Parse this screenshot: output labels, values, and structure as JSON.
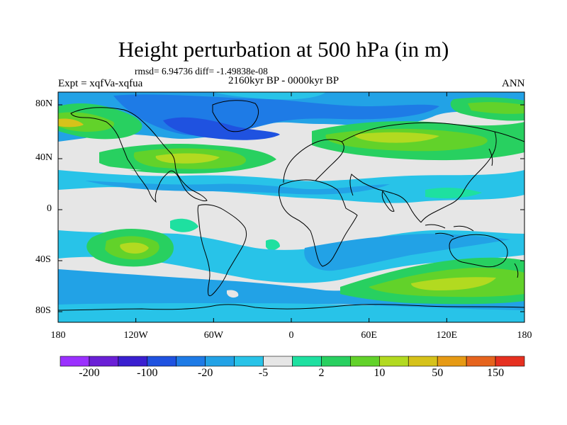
{
  "figure": {
    "title": "Height perturbation at 500 hPa (in m)",
    "stats": "rmsd= 6.94736 diff= -1.49838e-08",
    "experiment": "Expt = xqfVa-xqfua",
    "period": "2160kyr BP - 0000kyr BP",
    "season": "ANN"
  },
  "axes": {
    "lat_labels": [
      "80N",
      "40N",
      "0",
      "40S",
      "80S"
    ],
    "lon_labels": [
      "180",
      "120W",
      "60W",
      "0",
      "60E",
      "120E",
      "180"
    ],
    "lat_values": [
      80,
      40,
      0,
      -40,
      -80
    ],
    "lon_values": [
      -180,
      -120,
      -60,
      0,
      60,
      120,
      180
    ]
  },
  "colorbar": {
    "labels": [
      "-200",
      "-100",
      "-20",
      "-5",
      "2",
      "10",
      "50",
      "150"
    ],
    "colors": [
      "#9b30ff",
      "#6a1fd6",
      "#3a1fd0",
      "#1f52e0",
      "#1e7be6",
      "#22a2e6",
      "#28c3e8",
      "#e6e6e6",
      "#1ee0a0",
      "#28d060",
      "#62d22a",
      "#b2da20",
      "#d6c21a",
      "#e69a14",
      "#e6641e",
      "#e63020"
    ]
  },
  "map_field": {
    "colors": {
      "neutral": "#e6e6e6",
      "light_negative": "#28c3e8",
      "negative": "#22a2e6",
      "strong_negative": "#1e7be6",
      "stronger_negative": "#1f52e0",
      "light_positive": "#1ee0a0",
      "positive": "#28d060",
      "positive2": "#62d22a",
      "strong_positive": "#b2da20",
      "peak_positive": "#d6c21a",
      "max_positive": "#e69a14"
    }
  }
}
